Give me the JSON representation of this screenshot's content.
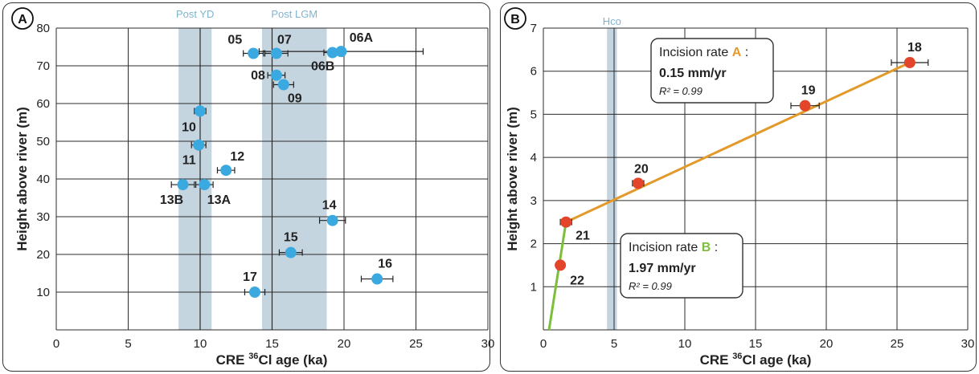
{
  "chart_data": [
    {
      "panel": "A",
      "type": "scatter",
      "xlabel": {
        "pre": "CRE ",
        "sup": "36",
        "post": "Cl age (ka)"
      },
      "ylabel": "Height above river (m)",
      "xlim": [
        0,
        30
      ],
      "ylim": [
        0,
        80
      ],
      "xticks": [
        0,
        5,
        10,
        15,
        20,
        25,
        30
      ],
      "yticks": [
        10,
        20,
        30,
        40,
        50,
        60,
        70,
        80
      ],
      "grid": true,
      "colors": {
        "point": "#3aa9e0",
        "band": "#c5d5e0",
        "band_label": "#7fb5cf",
        "errorbar": "#222222"
      },
      "bands": [
        {
          "label": "Post YD",
          "from": 8.5,
          "to": 10.8,
          "line": 10.0
        },
        {
          "label": "Post LGM",
          "from": 14.3,
          "to": 18.8,
          "line": 15.0
        }
      ],
      "points": [
        {
          "id": "05",
          "x": 13.7,
          "y": 73.3,
          "xerr": 0.7
        },
        {
          "id": "07",
          "x": 15.3,
          "y": 73.3,
          "xerr": 0.8
        },
        {
          "id": "06B",
          "x": 19.2,
          "y": 73.5,
          "xerr": 0.6
        },
        {
          "id": "06A",
          "x": 19.8,
          "y": 73.8,
          "xerr": 5.7
        },
        {
          "id": "08",
          "x": 15.3,
          "y": 67.5,
          "xerr": 0.6
        },
        {
          "id": "09",
          "x": 15.8,
          "y": 65.0,
          "xerr": 0.7
        },
        {
          "id": "10",
          "x": 10.0,
          "y": 58.0,
          "xerr": 0.4
        },
        {
          "id": "11",
          "x": 9.9,
          "y": 49.0,
          "xerr": 0.5
        },
        {
          "id": "12",
          "x": 11.8,
          "y": 42.3,
          "xerr": 0.6
        },
        {
          "id": "13B",
          "x": 8.8,
          "y": 38.5,
          "xerr": 0.8
        },
        {
          "id": "13A",
          "x": 10.3,
          "y": 38.5,
          "xerr": 0.6
        },
        {
          "id": "14",
          "x": 19.2,
          "y": 29.0,
          "xerr": 0.9
        },
        {
          "id": "15",
          "x": 16.3,
          "y": 20.5,
          "xerr": 0.8
        },
        {
          "id": "16",
          "x": 22.3,
          "y": 13.5,
          "xerr": 1.1
        },
        {
          "id": "17",
          "x": 13.8,
          "y": 10.0,
          "xerr": 0.7
        }
      ]
    },
    {
      "panel": "B",
      "type": "scatter",
      "xlabel": {
        "pre": "CRE ",
        "sup": "36",
        "post": "Cl age (ka)"
      },
      "ylabel": "Height above river (m)",
      "xlim": [
        0,
        30
      ],
      "ylim": [
        0,
        7
      ],
      "xticks": [
        0,
        5,
        10,
        15,
        20,
        25,
        30
      ],
      "yticks": [
        1,
        2,
        3,
        4,
        5,
        6,
        7
      ],
      "grid": true,
      "colors": {
        "point": "#e3452b",
        "band": "#c5d5e0",
        "band_label": "#7fb5cf",
        "line_a": "#e39a2a",
        "line_b": "#7cbf3a",
        "errorbar": "#222222"
      },
      "bands": [
        {
          "label": "Hco",
          "from": 4.5,
          "to": 5.2
        }
      ],
      "points": [
        {
          "id": "18",
          "x": 25.9,
          "y": 6.2,
          "xerr": 1.3
        },
        {
          "id": "19",
          "x": 18.5,
          "y": 5.2,
          "xerr": 1.0
        },
        {
          "id": "20",
          "x": 6.7,
          "y": 3.4,
          "xerr": 0.4
        },
        {
          "id": "21",
          "x": 1.6,
          "y": 2.5,
          "xerr": 0.4
        },
        {
          "id": "22",
          "x": 1.2,
          "y": 1.5,
          "xerr": 0
        }
      ],
      "lines": [
        {
          "name": "A",
          "x": [
            1.6,
            25.9
          ],
          "y": [
            2.5,
            6.2
          ]
        },
        {
          "name": "B",
          "x": [
            0.4,
            1.6
          ],
          "y": [
            0.0,
            2.5
          ]
        }
      ],
      "annotations": [
        {
          "title": "Incision rate",
          "key": "A",
          "rate": "0.15 mm/yr",
          "r2": "R² = 0.99"
        },
        {
          "title": "Incision rate",
          "key": "B",
          "rate": "1.97 mm/yr",
          "r2": "R² = 0.99"
        }
      ]
    }
  ]
}
